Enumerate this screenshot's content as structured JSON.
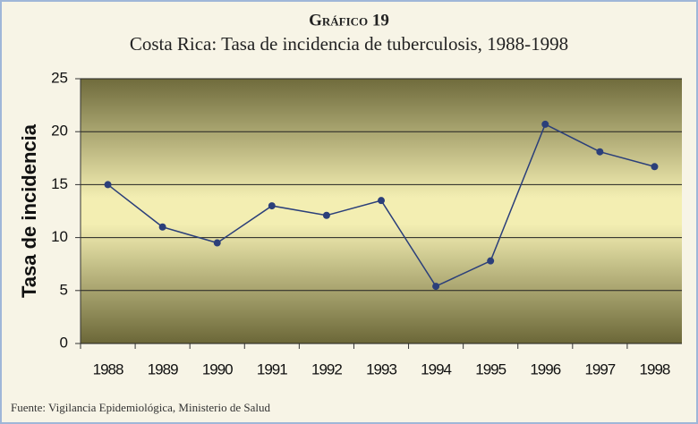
{
  "chart_data": {
    "type": "line",
    "title": "Gráfico 19",
    "subtitle": "Costa Rica: Tasa de incidencia de tuberculosis, 1988-1998",
    "y_label": "Tasa de incidencia",
    "source": "Fuente: Vigilancia Epidemiológica, Ministerio de Salud",
    "categories": [
      "1988",
      "1989",
      "1990",
      "1991",
      "1992",
      "1993",
      "1994",
      "1995",
      "1996",
      "1997",
      "1998"
    ],
    "series": [
      {
        "name": "Tasa de incidencia",
        "color": "#2b3f7a",
        "values": [
          15.0,
          11.0,
          9.5,
          13.0,
          12.1,
          13.5,
          5.4,
          7.8,
          20.7,
          18.1,
          16.7
        ]
      }
    ],
    "ylim": [
      0,
      25
    ],
    "yticks": [
      0,
      5,
      10,
      15,
      20,
      25
    ],
    "grid": true
  }
}
